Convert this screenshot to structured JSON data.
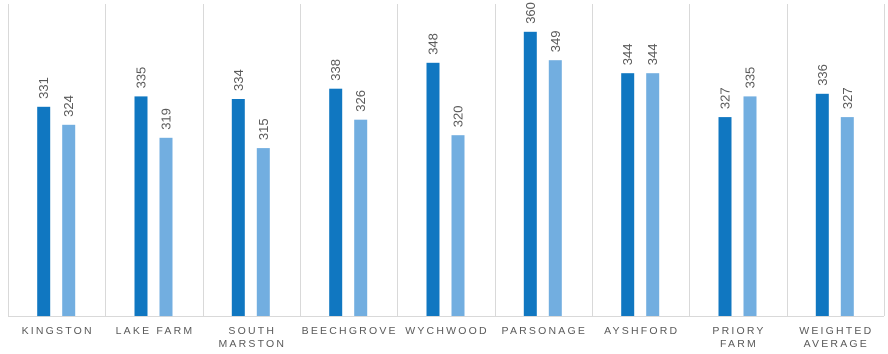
{
  "chart_data": {
    "type": "bar",
    "title": "",
    "xlabel": "",
    "ylabel": "",
    "ylim": [
      250,
      370
    ],
    "grid": "vertical-category-separators",
    "legend": "none",
    "categories": [
      [
        "KINGSTON"
      ],
      [
        "LAKE FARM"
      ],
      [
        "SOUTH",
        "MARSTON"
      ],
      [
        "BEECHGROVE"
      ],
      [
        "WYCHWOOD"
      ],
      [
        "PARSONAGE"
      ],
      [
        "AYSHFORD"
      ],
      [
        "PRIORY",
        "FARM"
      ],
      [
        "WEIGHTED",
        "AVERAGE"
      ]
    ],
    "series": [
      {
        "values": [
          331,
          335,
          334,
          338,
          348,
          360,
          344,
          327,
          336
        ],
        "color": "#1077c1"
      },
      {
        "values": [
          324,
          319,
          315,
          326,
          320,
          349,
          344,
          335,
          327
        ],
        "color": "#72aee0"
      }
    ]
  }
}
